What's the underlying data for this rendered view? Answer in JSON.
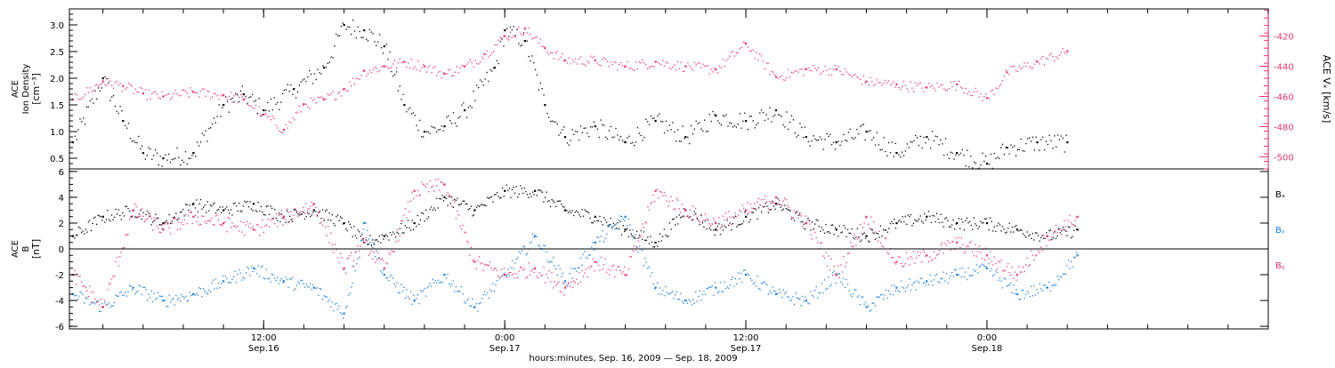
{
  "colors": {
    "black": "#000000",
    "magenta": "#e8376b",
    "blue": "#1a7fe0",
    "axis": "#000000"
  },
  "time": {
    "xlim": [
      "2009-09-16 02:20",
      "2009-09-18 14:00"
    ],
    "major_ticks": [
      {
        "time": "2009-09-16 12:00",
        "label1": "12:00",
        "label2": "Sep.16"
      },
      {
        "time": "2009-09-17 00:00",
        "label1": "0:00",
        "label2": "Sep.17"
      },
      {
        "time": "2009-09-17 12:00",
        "label1": "12:00",
        "label2": "Sep.17"
      },
      {
        "time": "2009-09-18 00:00",
        "label1": "0:00",
        "label2": "Sep.18"
      }
    ],
    "minor_tick_hours": 2,
    "xlabel": "hours:minutes, Sep. 16, 2009 — Sep. 18, 2009"
  },
  "chart_data": [
    {
      "type": "scatter",
      "panel": "top",
      "ylabel_left": [
        "ACE",
        "Ion Density",
        "[cm⁻³]"
      ],
      "ylabel_right": "ACE Vₓ [km/s]",
      "ylim_left": [
        0.3,
        3.3
      ],
      "yticks_left": [
        0.5,
        1.0,
        1.5,
        2.0,
        2.5,
        3.0
      ],
      "ylim_right": [
        -508,
        -402
      ],
      "yticks_right": [
        -500,
        -480,
        -460,
        -440,
        -420
      ],
      "series": [
        {
          "axis": "left",
          "color": "#000000",
          "x": [
            "2009-09-16 02:30",
            "2009-09-16 04:00",
            "2009-09-16 05:00",
            "2009-09-16 06:00",
            "2009-09-16 07:00",
            "2009-09-16 08:30",
            "2009-09-16 10:00",
            "2009-09-16 11:00",
            "2009-09-16 12:00",
            "2009-09-16 13:30",
            "2009-09-16 15:00",
            "2009-09-16 16:00",
            "2009-09-16 17:00",
            "2009-09-16 18:00",
            "2009-09-16 19:00",
            "2009-09-16 20:00",
            "2009-09-16 21:00",
            "2009-09-16 22:00",
            "2009-09-16 23:30",
            "2009-09-17 00:00",
            "2009-09-17 01:00",
            "2009-09-17 02:00",
            "2009-09-17 03:00",
            "2009-09-17 04:30",
            "2009-09-17 06:00",
            "2009-09-17 07:30",
            "2009-09-17 09:00",
            "2009-09-17 10:30",
            "2009-09-17 12:00",
            "2009-09-17 13:30",
            "2009-09-17 15:00",
            "2009-09-17 16:30",
            "2009-09-17 18:00",
            "2009-09-17 19:30",
            "2009-09-17 21:00",
            "2009-09-17 22:30",
            "2009-09-18 00:00",
            "2009-09-18 01:00",
            "2009-09-18 02:30",
            "2009-09-18 04:00"
          ],
          "y": [
            0.8,
            2.0,
            1.2,
            0.6,
            0.5,
            0.6,
            1.5,
            1.7,
            1.4,
            1.8,
            2.2,
            3.0,
            2.9,
            2.6,
            1.5,
            1.0,
            1.1,
            1.4,
            2.2,
            2.9,
            2.7,
            1.5,
            0.9,
            1.1,
            0.8,
            1.2,
            0.9,
            1.3,
            1.2,
            1.4,
            0.9,
            0.8,
            1.0,
            0.6,
            0.9,
            0.6,
            0.4,
            0.7,
            0.8,
            0.8
          ]
        },
        {
          "axis": "right",
          "color": "#e8376b",
          "x": [
            "2009-09-16 02:30",
            "2009-09-16 04:00",
            "2009-09-16 05:00",
            "2009-09-16 06:00",
            "2009-09-16 07:00",
            "2009-09-16 08:30",
            "2009-09-16 10:00",
            "2009-09-16 11:00",
            "2009-09-16 12:00",
            "2009-09-16 13:00",
            "2009-09-16 14:00",
            "2009-09-16 15:00",
            "2009-09-16 16:00",
            "2009-09-16 17:00",
            "2009-09-16 18:00",
            "2009-09-16 19:00",
            "2009-09-16 20:00",
            "2009-09-16 21:00",
            "2009-09-16 22:00",
            "2009-09-16 23:00",
            "2009-09-17 00:00",
            "2009-09-17 01:00",
            "2009-09-17 02:00",
            "2009-09-17 03:00",
            "2009-09-17 04:30",
            "2009-09-17 06:00",
            "2009-09-17 07:30",
            "2009-09-17 09:00",
            "2009-09-17 10:30",
            "2009-09-17 12:00",
            "2009-09-17 13:30",
            "2009-09-17 15:00",
            "2009-09-17 16:30",
            "2009-09-17 18:00",
            "2009-09-17 19:30",
            "2009-09-17 21:00",
            "2009-09-17 22:30",
            "2009-09-18 00:00",
            "2009-09-18 01:00",
            "2009-09-18 02:30",
            "2009-09-18 04:00"
          ],
          "y": [
            -462,
            -450,
            -453,
            -458,
            -460,
            -457,
            -459,
            -462,
            -472,
            -482,
            -465,
            -462,
            -455,
            -443,
            -440,
            -437,
            -440,
            -445,
            -440,
            -432,
            -420,
            -415,
            -428,
            -436,
            -436,
            -440,
            -437,
            -440,
            -442,
            -425,
            -447,
            -442,
            -442,
            -450,
            -452,
            -454,
            -452,
            -461,
            -444,
            -437,
            -430
          ]
        }
      ]
    },
    {
      "type": "scatter",
      "panel": "bottom",
      "ylabel_left": [
        "ACE",
        "B",
        "[nT]"
      ],
      "ylim": [
        -6.2,
        6.2
      ],
      "yticks": [
        -6,
        -4,
        -2,
        0,
        2,
        4,
        6
      ],
      "zero_line": true,
      "series": [
        {
          "name": "Bₓ",
          "color": "#000000",
          "x": [
            "2009-09-16 02:30",
            "2009-09-16 04:00",
            "2009-09-16 05:30",
            "2009-09-16 07:00",
            "2009-09-16 08:30",
            "2009-09-16 10:00",
            "2009-09-16 11:30",
            "2009-09-16 13:00",
            "2009-09-16 14:30",
            "2009-09-16 16:00",
            "2009-09-16 17:00",
            "2009-09-16 18:00",
            "2009-09-16 19:30",
            "2009-09-16 21:00",
            "2009-09-16 22:30",
            "2009-09-17 00:00",
            "2009-09-17 01:30",
            "2009-09-17 03:00",
            "2009-09-17 04:30",
            "2009-09-17 06:00",
            "2009-09-17 07:30",
            "2009-09-17 09:00",
            "2009-09-17 10:30",
            "2009-09-17 12:00",
            "2009-09-17 13:30",
            "2009-09-17 15:00",
            "2009-09-17 16:30",
            "2009-09-17 18:00",
            "2009-09-17 19:30",
            "2009-09-17 21:00",
            "2009-09-17 22:30",
            "2009-09-18 00:00",
            "2009-09-18 01:30",
            "2009-09-18 03:00",
            "2009-09-18 04:30"
          ],
          "y": [
            1.0,
            2.5,
            3.0,
            2.0,
            3.5,
            3.0,
            3.5,
            2.5,
            3.0,
            2.0,
            0.5,
            1.0,
            2.0,
            4.0,
            3.0,
            4.5,
            4.5,
            3.0,
            2.5,
            1.5,
            0.5,
            3.0,
            1.5,
            2.5,
            3.5,
            2.0,
            1.5,
            1.0,
            2.0,
            2.5,
            2.0,
            2.0,
            1.5,
            1.0,
            1.5
          ]
        },
        {
          "name": "Bᵧ",
          "color": "#1a7fe0",
          "x": [
            "2009-09-16 02:30",
            "2009-09-16 04:00",
            "2009-09-16 05:30",
            "2009-09-16 07:00",
            "2009-09-16 08:30",
            "2009-09-16 10:00",
            "2009-09-16 11:30",
            "2009-09-16 13:00",
            "2009-09-16 14:30",
            "2009-09-16 16:00",
            "2009-09-16 17:00",
            "2009-09-16 18:00",
            "2009-09-16 19:30",
            "2009-09-16 21:00",
            "2009-09-16 22:30",
            "2009-09-17 00:00",
            "2009-09-17 01:30",
            "2009-09-17 03:00",
            "2009-09-17 04:30",
            "2009-09-17 06:00",
            "2009-09-17 07:30",
            "2009-09-17 09:00",
            "2009-09-17 10:30",
            "2009-09-17 12:00",
            "2009-09-17 13:30",
            "2009-09-17 15:00",
            "2009-09-17 16:30",
            "2009-09-17 18:00",
            "2009-09-17 19:30",
            "2009-09-17 21:00",
            "2009-09-17 22:30",
            "2009-09-18 00:00",
            "2009-09-18 01:30",
            "2009-09-18 03:00",
            "2009-09-18 04:30"
          ],
          "y": [
            -3.5,
            -4.5,
            -3.0,
            -4.0,
            -3.5,
            -2.5,
            -1.5,
            -2.5,
            -3.0,
            -5.0,
            2.0,
            -2.0,
            -4.0,
            -2.0,
            -4.5,
            -2.0,
            1.0,
            -2.5,
            0.5,
            2.5,
            -3.0,
            -4.0,
            -3.0,
            -2.0,
            -3.5,
            -4.0,
            -2.0,
            -4.5,
            -3.0,
            -2.5,
            -2.0,
            -1.5,
            -3.5,
            -3.0,
            -0.5
          ]
        },
        {
          "name": "Bᵪ",
          "color": "#e8376b",
          "x": [
            "2009-09-16 02:30",
            "2009-09-16 04:00",
            "2009-09-16 05:30",
            "2009-09-16 07:00",
            "2009-09-16 08:30",
            "2009-09-16 10:00",
            "2009-09-16 11:30",
            "2009-09-16 13:00",
            "2009-09-16 14:30",
            "2009-09-16 16:00",
            "2009-09-16 17:00",
            "2009-09-16 18:00",
            "2009-09-16 19:30",
            "2009-09-16 21:00",
            "2009-09-16 22:30",
            "2009-09-17 00:00",
            "2009-09-17 01:30",
            "2009-09-17 03:00",
            "2009-09-17 04:30",
            "2009-09-17 06:00",
            "2009-09-17 07:30",
            "2009-09-17 09:00",
            "2009-09-17 10:30",
            "2009-09-17 12:00",
            "2009-09-17 13:30",
            "2009-09-17 15:00",
            "2009-09-17 16:30",
            "2009-09-17 18:00",
            "2009-09-17 19:30",
            "2009-09-17 21:00",
            "2009-09-17 22:30",
            "2009-09-18 00:00",
            "2009-09-18 01:30",
            "2009-09-18 03:00",
            "2009-09-18 04:30"
          ],
          "y": [
            -2.0,
            -4.5,
            3.0,
            1.5,
            2.5,
            2.0,
            1.5,
            2.5,
            3.5,
            -1.5,
            0.5,
            -1.5,
            4.5,
            5.0,
            -1.0,
            -2.0,
            -1.5,
            -3.0,
            -1.0,
            -2.0,
            4.5,
            3.0,
            2.0,
            3.0,
            4.0,
            2.0,
            -2.0,
            2.5,
            -1.0,
            -0.5,
            0.5,
            -0.5,
            -2.0,
            1.0,
            2.5
          ]
        }
      ]
    }
  ]
}
